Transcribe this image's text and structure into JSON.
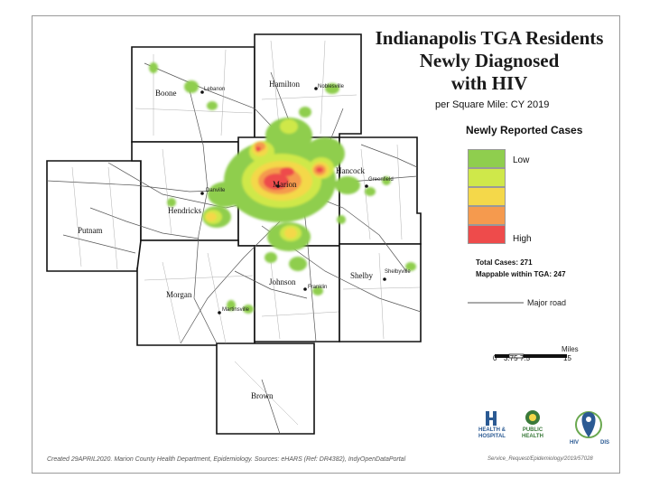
{
  "title": {
    "line1": "Indianapolis TGA Residents",
    "line2": "Newly Diagnosed",
    "line3": "with HIV"
  },
  "subtitle": "per Square Mile: CY 2019",
  "legend": {
    "title": "Newly Reported Cases",
    "low": "Low",
    "high": "High",
    "colors": [
      "#8fce4e",
      "#cfe84a",
      "#f4d84a",
      "#f59a4e",
      "#ee4b4b"
    ]
  },
  "totals": {
    "total": "Total Cases: 271",
    "mappable": "Mappable within TGA: 247"
  },
  "major_road": "Major road",
  "scale": {
    "unit": "Miles",
    "ticks": [
      "0",
      "3.75",
      "7.5",
      "15"
    ]
  },
  "counties": [
    {
      "name": "Boone"
    },
    {
      "name": "Hamilton"
    },
    {
      "name": "Hendricks"
    },
    {
      "name": "Marion"
    },
    {
      "name": "Hancock"
    },
    {
      "name": "Putnam"
    },
    {
      "name": "Morgan"
    },
    {
      "name": "Johnson"
    },
    {
      "name": "Shelby"
    },
    {
      "name": "Brown"
    }
  ],
  "cities": {
    "lebanon": "Lebanon",
    "noblesville": "Noblesville",
    "greenfield": "Greenfield",
    "shelbyville": "Shelbyville",
    "martinsville": "Martinsville",
    "franklin": "Franklin",
    "danville": "Danville"
  },
  "footer": {
    "left": "Created 29APRIL2020. Marion County Health Department, Epidemiology. Sources: eHARS (Ref: DR4382), IndyOpenDataPortal",
    "right": "Service_Request/Epidemiology/2019/57028"
  },
  "logos": {
    "hospital": "HEALTH & HOSPITAL",
    "public_health": "PUBLIC HEALTH",
    "hiv": "HIV",
    "dis": "DIS"
  }
}
